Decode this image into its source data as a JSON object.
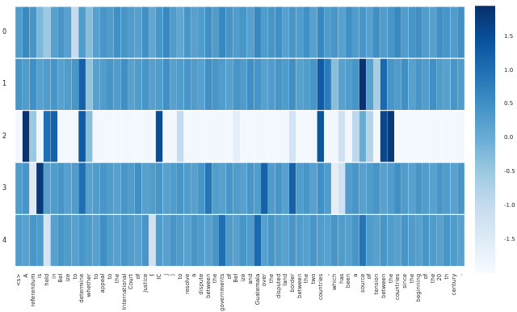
{
  "chart_data": {
    "type": "heatmap",
    "categories": [
      "<s>",
      "A",
      "referendum",
      "is",
      "held",
      "in",
      "Bel",
      "ize",
      "to",
      "determine",
      "whether",
      "to",
      "appeal",
      "to",
      "the",
      "International",
      "Court",
      "of",
      "Justice",
      "(",
      "IC",
      "J",
      ")",
      "to",
      "resolve",
      "a",
      "dispute",
      "between",
      "the",
      "governments",
      "of",
      "Bel",
      "ize",
      "and",
      "Guatemala",
      "over",
      "the",
      "disputed",
      "land",
      "border",
      "between",
      "the",
      "two",
      "countries",
      ",",
      "which",
      "has",
      "been",
      "a",
      "source",
      "of",
      "tension",
      "between",
      "the",
      "countries",
      "since",
      "the",
      "beginning",
      "of",
      "the",
      "20",
      "th",
      "century",
      "."
    ],
    "ylim": [
      -0.5,
      4.5
    ],
    "yticks": [
      0,
      1,
      2,
      3,
      4
    ],
    "cells": [
      [
        0.3,
        0.6,
        0.4,
        -0.2,
        -0.5,
        0.2,
        0.4,
        0.2,
        -1.0,
        0.3,
        -0.3,
        0.2,
        0.4,
        0.3,
        0.5,
        0.4,
        0.3,
        0.2,
        0.5,
        0.1,
        0.4,
        0.6,
        0.3,
        0.1,
        0.4,
        0.2,
        0.3,
        0.5,
        0.3,
        0.6,
        0.4,
        0.3,
        0.4,
        0.2,
        0.6,
        0.3,
        0.4,
        0.5,
        0.2,
        0.4,
        0.3,
        0.5,
        0.2,
        0.6,
        0.3,
        0.4,
        0.2,
        0.5,
        0.3,
        0.4,
        0.2,
        0.5,
        0.3,
        0.4,
        0.6,
        0.3,
        0.4,
        0.5,
        0.3,
        0.2,
        0.5,
        0.4,
        0.3,
        0.5
      ],
      [
        0.4,
        0.3,
        0.5,
        0.2,
        0.3,
        0.4,
        0.2,
        0.3,
        0.4,
        1.2,
        -0.4,
        0.2,
        0.3,
        0.4,
        0.3,
        0.5,
        0.2,
        0.3,
        0.4,
        0.2,
        0.3,
        0.5,
        0.2,
        0.3,
        0.4,
        0.3,
        0.2,
        0.5,
        0.4,
        0.3,
        0.2,
        0.4,
        0.3,
        0.5,
        0.4,
        0.2,
        0.3,
        0.4,
        0.3,
        0.5,
        0.2,
        0.3,
        0.4,
        1.3,
        0.8,
        -0.3,
        0.2,
        0.3,
        0.4,
        1.9,
        0.2,
        -0.6,
        1.1,
        0.4,
        0.3,
        0.5,
        0.2,
        0.4,
        0.3,
        0.5,
        0.3,
        0.2,
        0.4,
        0.3
      ],
      [
        -1.9,
        1.9,
        -0.5,
        -1.9,
        1.0,
        1.2,
        -1.9,
        -1.9,
        -1.9,
        1.3,
        -0.3,
        -1.9,
        -1.9,
        -1.9,
        -1.9,
        -1.9,
        -1.9,
        -1.9,
        -1.9,
        -1.9,
        1.5,
        -1.9,
        -1.9,
        -1.0,
        -1.9,
        -1.9,
        -1.9,
        -1.9,
        -1.9,
        -1.9,
        -1.9,
        -1.6,
        -1.9,
        -1.9,
        -1.9,
        -1.9,
        -1.9,
        -1.9,
        -1.9,
        -1.3,
        -1.9,
        -1.9,
        -1.9,
        1.4,
        -1.9,
        -1.9,
        -1.2,
        -1.9,
        -0.9,
        0.0,
        -0.8,
        -1.9,
        1.6,
        1.8,
        -1.9,
        -1.9,
        -1.9,
        -1.9,
        -1.9,
        -1.9,
        -1.9,
        -1.9,
        -1.9,
        -1.9
      ],
      [
        0.3,
        0.4,
        -1.5,
        1.8,
        0.2,
        0.3,
        0.4,
        0.2,
        0.3,
        1.0,
        0.2,
        0.3,
        0.4,
        0.3,
        0.2,
        0.4,
        0.3,
        0.5,
        0.2,
        0.3,
        0.4,
        0.2,
        0.3,
        0.4,
        0.3,
        0.2,
        0.4,
        0.9,
        0.3,
        0.2,
        0.4,
        0.3,
        0.2,
        0.4,
        0.3,
        1.2,
        0.3,
        0.4,
        0.2,
        1.2,
        0.3,
        0.4,
        0.2,
        0.5,
        0.3,
        -1.6,
        -1.2,
        0.3,
        0.4,
        0.2,
        0.3,
        0.4,
        0.2,
        0.3,
        0.5,
        0.3,
        0.2,
        0.4,
        0.3,
        0.2,
        0.4,
        0.3,
        0.2,
        0.4
      ],
      [
        0.3,
        0.2,
        0.4,
        0.3,
        -1.3,
        0.2,
        0.4,
        0.3,
        0.2,
        0.4,
        0.3,
        0.2,
        0.5,
        0.3,
        0.2,
        0.4,
        0.3,
        0.2,
        0.4,
        -1.2,
        0.3,
        0.2,
        0.4,
        0.3,
        0.2,
        0.4,
        0.3,
        0.2,
        0.4,
        1.0,
        0.3,
        0.2,
        0.4,
        0.3,
        1.1,
        0.2,
        0.4,
        0.3,
        0.2,
        0.4,
        0.3,
        0.2,
        0.4,
        0.3,
        0.2,
        0.4,
        0.3,
        0.2,
        0.4,
        0.9,
        0.3,
        0.2,
        0.4,
        0.3,
        0.2,
        0.4,
        0.3,
        0.2,
        0.4,
        0.3,
        0.2,
        0.4,
        0.3,
        0.2
      ]
    ],
    "colorbar": {
      "range": [
        -2.0,
        1.95
      ],
      "ticks": [
        -1.5,
        {
          "value": -1,
          "label": "-1.0"
        },
        -0.5,
        {
          "value": 0,
          "label": "0.0"
        },
        0.5,
        {
          "value": 1,
          "label": "1.0"
        },
        1.5
      ]
    },
    "color": "Blues"
  }
}
